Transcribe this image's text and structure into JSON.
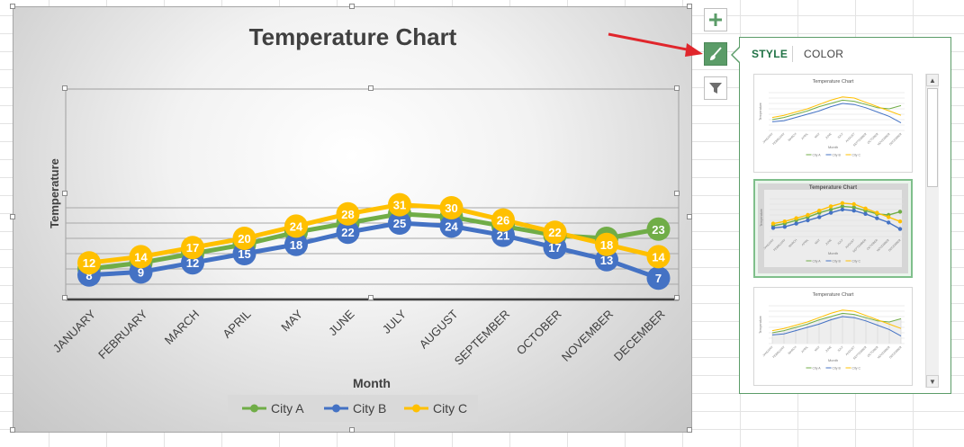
{
  "chart_data": {
    "type": "line",
    "title": "Temperature Chart",
    "xlabel": "Month",
    "ylabel": "Temperature",
    "categories": [
      "JANUARY",
      "FEBRUARY",
      "MARCH",
      "APRIL",
      "MAY",
      "JUNE",
      "JULY",
      "AUGUST",
      "SEPTEMBER",
      "OCTOBER",
      "NOVEMBER",
      "DECEMBER"
    ],
    "series": [
      {
        "name": "City A",
        "color": "#70ad47",
        "values": [
          10,
          12,
          15,
          18,
          22,
          25,
          28,
          27,
          24,
          21,
          20,
          23
        ]
      },
      {
        "name": "City B",
        "color": "#4472c4",
        "values": [
          8,
          9,
          12,
          15,
          18,
          22,
          25,
          24,
          21,
          17,
          13,
          7
        ]
      },
      {
        "name": "City C",
        "color": "#ffc000",
        "values": [
          12,
          14,
          17,
          20,
          24,
          28,
          31,
          30,
          26,
          22,
          18,
          14
        ]
      }
    ],
    "ylim": [
      0,
      35
    ],
    "grid": true,
    "legend": "bottom",
    "data_labels": true
  },
  "pane": {
    "tab_style": "STYLE",
    "tab_color": "COLOR"
  },
  "icons": {
    "add_elements": "plus-icon",
    "chart_styles": "brush-icon",
    "chart_filters": "filter-icon"
  },
  "thumbnails": [
    {
      "title": "Temperature Chart",
      "xlabel": "Month",
      "ylabel": "Temperature",
      "legend": [
        "City A",
        "City B",
        "City C"
      ]
    },
    {
      "title": "Temperature Chart",
      "xlabel": "Month",
      "ylabel": "Temperature",
      "legend": [
        "City A",
        "City B",
        "City C"
      ]
    },
    {
      "title": "Temperature Chart",
      "xlabel": "Month",
      "ylabel": "Temperature",
      "legend": [
        "City A",
        "City B",
        "City C"
      ]
    }
  ]
}
